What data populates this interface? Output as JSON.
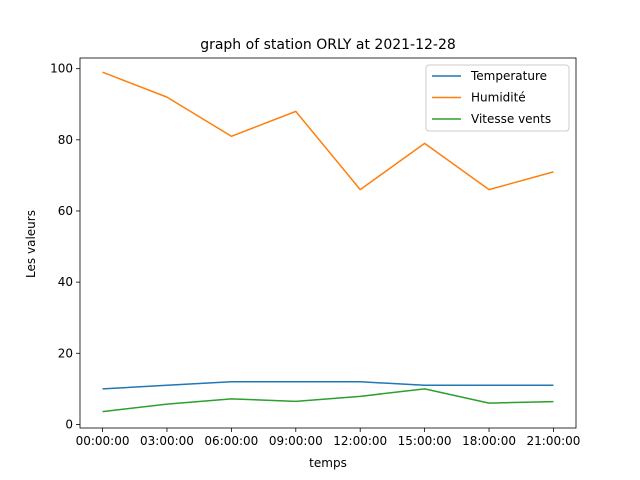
{
  "chart_data": {
    "type": "line",
    "title": "graph of station ORLY at 2021-12-28",
    "xlabel": "temps",
    "ylabel": "Les valeurs",
    "categories": [
      "00:00:00",
      "03:00:00",
      "06:00:00",
      "09:00:00",
      "12:00:00",
      "15:00:00",
      "18:00:00",
      "21:00:00"
    ],
    "ylim": [
      -1,
      103
    ],
    "yticks": [
      0,
      20,
      40,
      60,
      80,
      100
    ],
    "grid": false,
    "legend_position": "top-right",
    "series": [
      {
        "name": "Temperature",
        "color": "#1f77b4",
        "values": [
          10,
          11,
          12,
          12,
          12,
          11,
          11,
          11
        ]
      },
      {
        "name": "Humidité",
        "color": "#ff7f0e",
        "values": [
          99,
          92,
          81,
          88,
          66,
          79,
          66,
          71
        ]
      },
      {
        "name": "Vitesse vents",
        "color": "#2ca02c",
        "values": [
          3.6,
          5.7,
          7.2,
          6.5,
          7.9,
          10,
          6,
          6.4
        ]
      }
    ]
  }
}
